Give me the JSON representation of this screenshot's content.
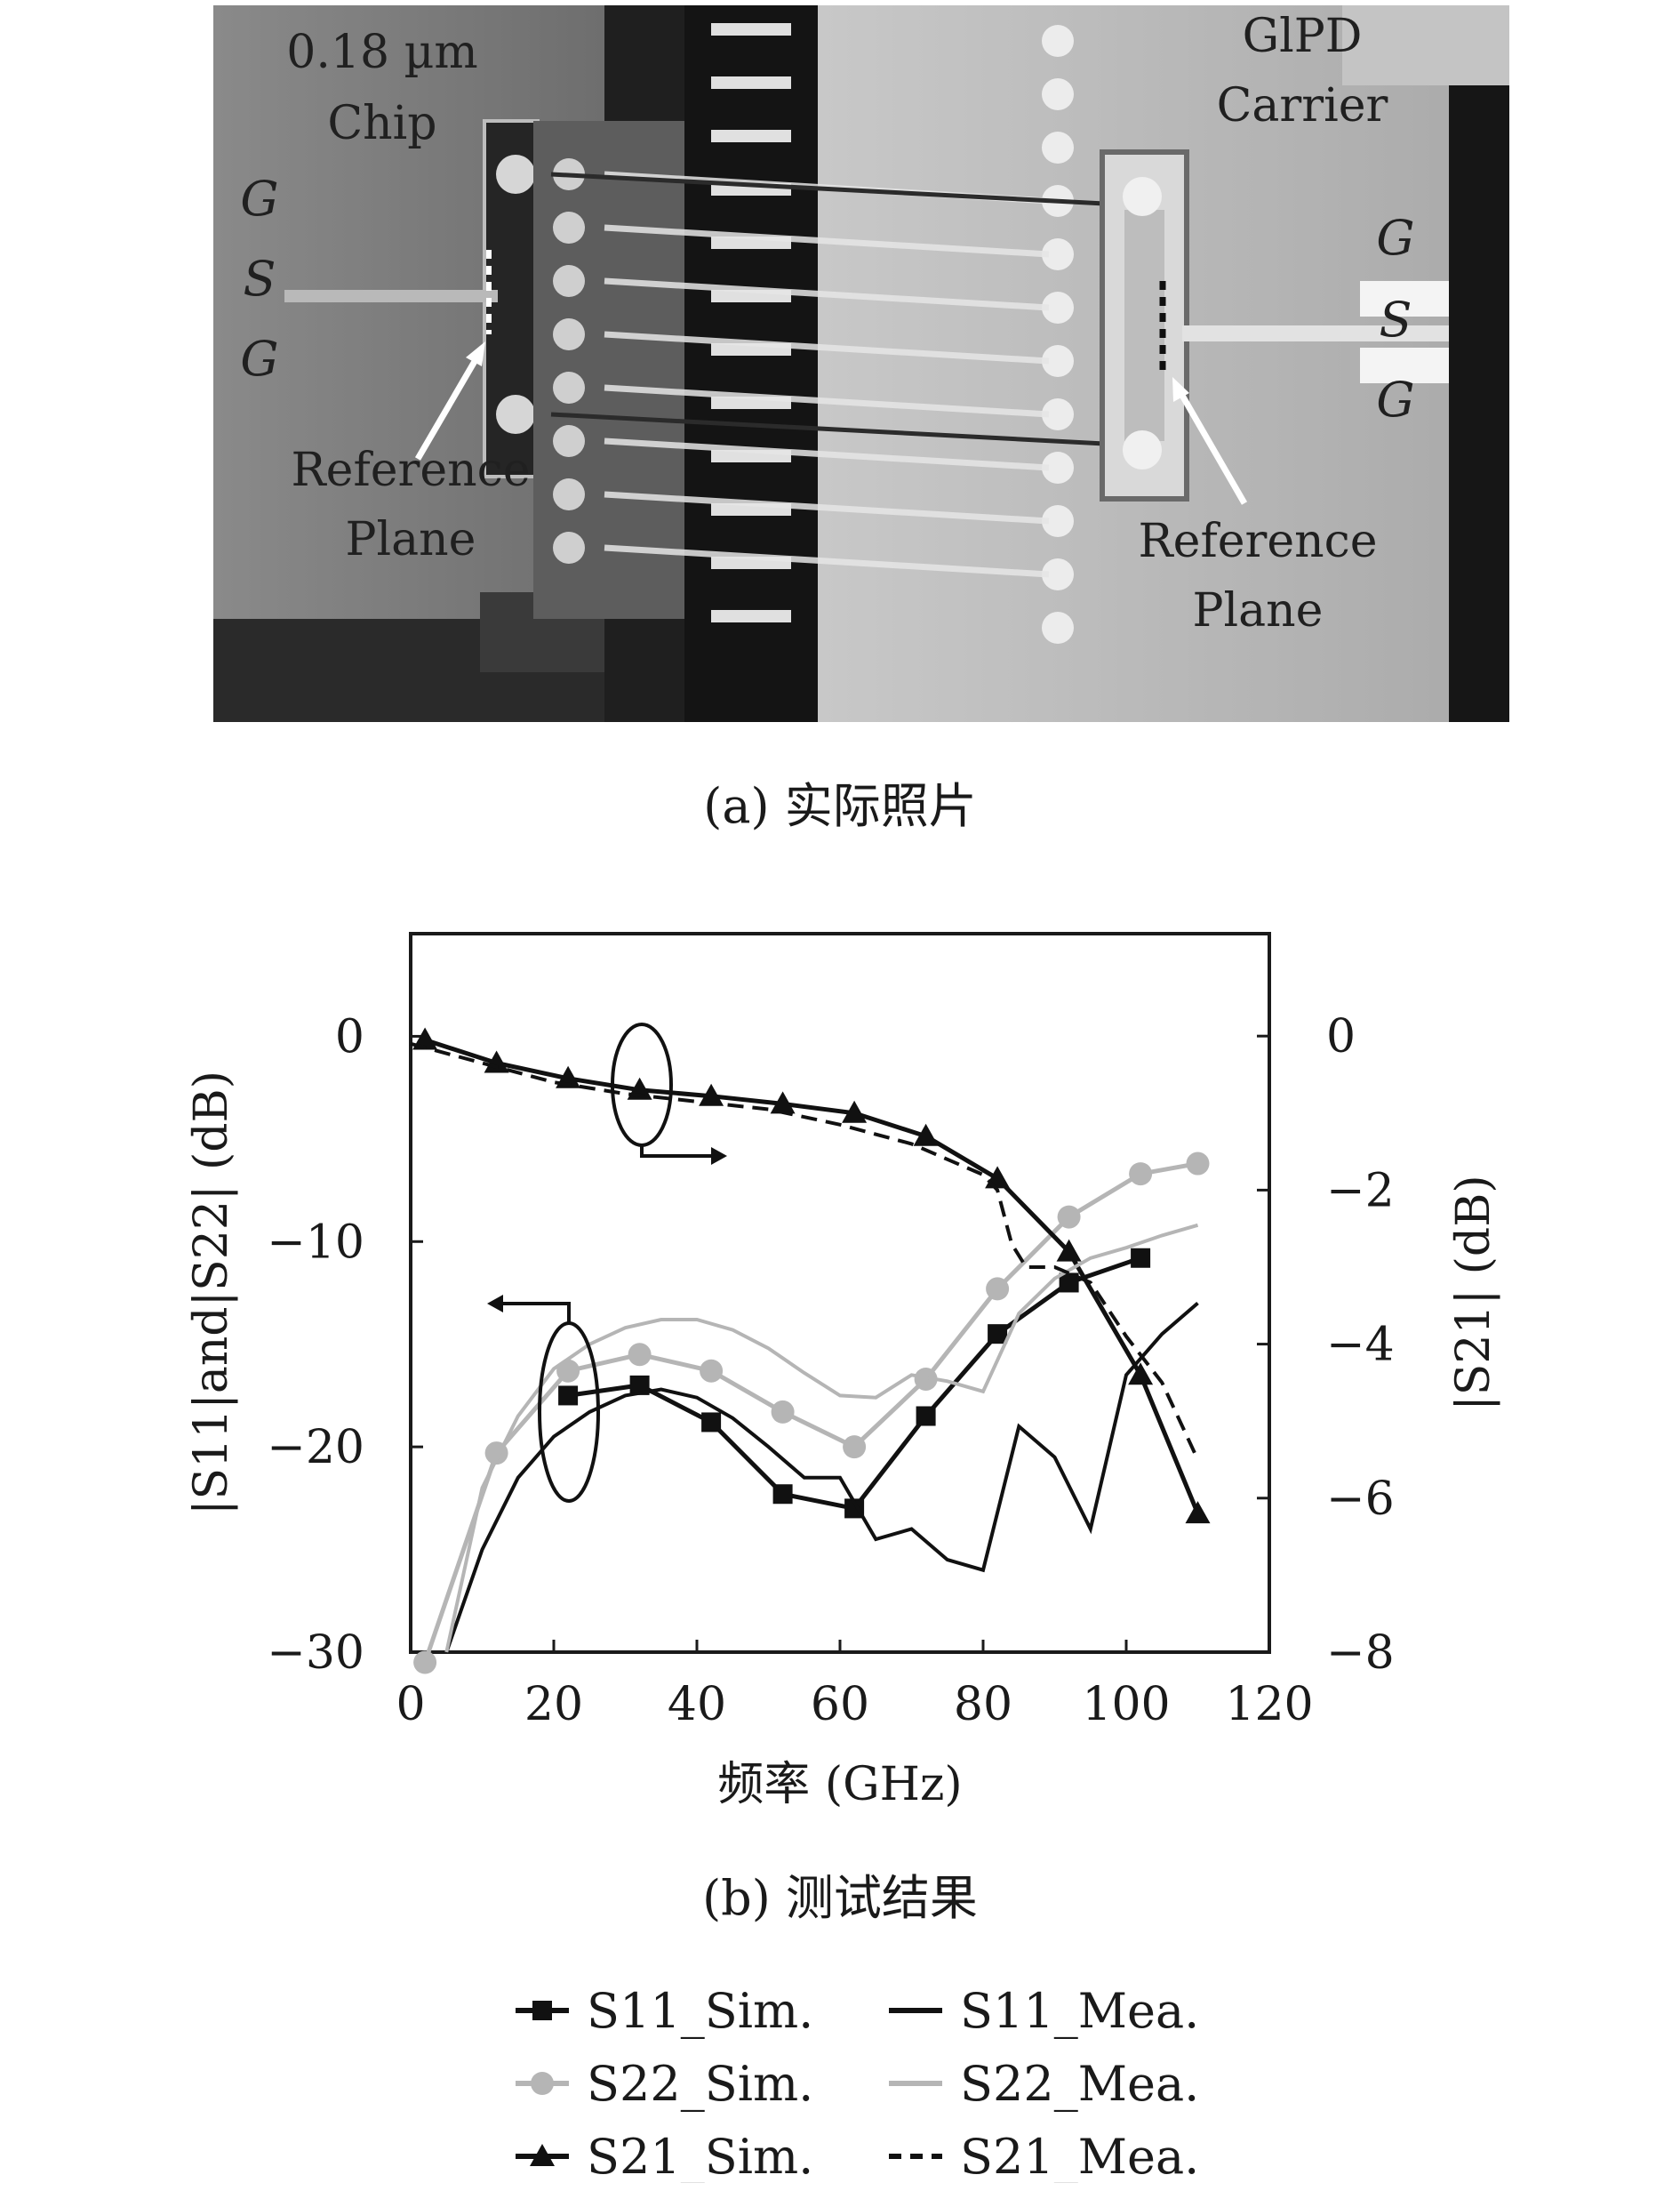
{
  "photo": {
    "chip_label_line1": "0.18 µm",
    "chip_label_line2": "Chip",
    "carrier_label_line1": "GlPD",
    "carrier_label_line2": "Carrier",
    "left_pads": [
      "G",
      "S",
      "G"
    ],
    "right_pads": [
      "G",
      "S",
      "G"
    ],
    "left_reference_line1": "Reference",
    "left_reference_line2": "Plane",
    "right_reference_line1": "Reference",
    "right_reference_line2": "Plane"
  },
  "captions": {
    "a": "(a) 实际照片",
    "b": "(b) 测试结果"
  },
  "chart_data": {
    "type": "line",
    "xlabel": "频率 (GHz)",
    "ylabel_left": "|S11|and|S22| (dB)",
    "ylabel_right": "|S21| (dB)",
    "xlim": [
      0,
      120
    ],
    "ylim_left": [
      -30,
      5
    ],
    "ylim_right": [
      -8,
      1.33
    ],
    "x_ticks": [
      "0",
      "20",
      "40",
      "60",
      "80",
      "100",
      "120"
    ],
    "y_left_ticks": [
      "0",
      "−10",
      "−20",
      "−30"
    ],
    "y_right_ticks": [
      "0",
      "−2",
      "−4",
      "−6",
      "−8"
    ],
    "grid": false,
    "legend_position": "below",
    "series": [
      {
        "name": "S11_Sim.",
        "axis": "left",
        "marker": "square",
        "color": "#111111",
        "style": "solid",
        "x": [
          22,
          32,
          42,
          52,
          62,
          72,
          82,
          92,
          102
        ],
        "y": [
          -17.5,
          -17.0,
          -18.8,
          -22.3,
          -23.0,
          -18.5,
          -14.5,
          -12.0,
          -10.8
        ]
      },
      {
        "name": "S22_Sim.",
        "axis": "left",
        "marker": "circle",
        "color": "#b5b5b5",
        "style": "solid",
        "x": [
          2,
          12,
          22,
          32,
          42,
          52,
          62,
          72,
          82,
          92,
          102,
          110
        ],
        "y": [
          -30.5,
          -20.3,
          -16.3,
          -15.5,
          -16.3,
          -18.3,
          -20.0,
          -16.7,
          -12.3,
          -8.8,
          -6.7,
          -6.2
        ]
      },
      {
        "name": "S21_Sim.",
        "axis": "right",
        "marker": "triangle",
        "color": "#111111",
        "style": "solid",
        "x": [
          2,
          12,
          22,
          32,
          42,
          52,
          62,
          72,
          82,
          92,
          102,
          110
        ],
        "y": [
          -0.05,
          -0.35,
          -0.55,
          -0.7,
          -0.78,
          -0.88,
          -1.0,
          -1.3,
          -1.85,
          -2.8,
          -4.4,
          -6.2
        ]
      },
      {
        "name": "S11_Mea.",
        "axis": "left",
        "marker": "none",
        "color": "#111111",
        "style": "solid",
        "x": [
          5,
          10,
          15,
          20,
          25,
          30,
          35,
          40,
          45,
          50,
          55,
          60,
          65,
          70,
          75,
          80,
          85,
          90,
          95,
          100,
          105,
          110
        ],
        "y": [
          -30,
          -25,
          -21.5,
          -19.5,
          -18.3,
          -17.5,
          -17.2,
          -17.6,
          -18.6,
          -20.0,
          -21.5,
          -21.5,
          -24.5,
          -24.0,
          -25.5,
          -26.0,
          -19.0,
          -20.5,
          -24.0,
          -16.5,
          -14.5,
          -13.0
        ]
      },
      {
        "name": "S22_Mea.",
        "axis": "left",
        "marker": "none",
        "color": "#b5b5b5",
        "style": "solid",
        "x": [
          5,
          10,
          15,
          20,
          25,
          30,
          35,
          40,
          45,
          50,
          55,
          60,
          65,
          70,
          75,
          80,
          85,
          90,
          95,
          100,
          105,
          110
        ],
        "y": [
          -30,
          -22,
          -18.5,
          -16.2,
          -15.0,
          -14.2,
          -13.8,
          -13.8,
          -14.3,
          -15.2,
          -16.4,
          -17.5,
          -17.6,
          -16.5,
          -16.8,
          -17.3,
          -13.5,
          -11.8,
          -10.8,
          -10.3,
          -9.7,
          -9.2
        ]
      },
      {
        "name": "S21_Mea.",
        "axis": "right",
        "marker": "none",
        "color": "#111111",
        "style": "dashed",
        "x": [
          0,
          10,
          20,
          30,
          40,
          50,
          60,
          70,
          80,
          82,
          84,
          86,
          90,
          95,
          100,
          105,
          110
        ],
        "y": [
          -0.1,
          -0.35,
          -0.6,
          -0.75,
          -0.85,
          -0.95,
          -1.15,
          -1.4,
          -1.8,
          -2.0,
          -2.7,
          -3.0,
          -3.0,
          -3.2,
          -3.9,
          -4.5,
          -5.5
        ]
      }
    ]
  },
  "legend": {
    "items": [
      {
        "label": "S11_Sim.",
        "color": "#111111",
        "marker": "square",
        "style": "solid"
      },
      {
        "label": "S11_Mea.",
        "color": "#111111",
        "marker": "none",
        "style": "solid"
      },
      {
        "label": "S22_Sim.",
        "color": "#b5b5b5",
        "marker": "circle",
        "style": "solid"
      },
      {
        "label": "S22_Mea.",
        "color": "#b5b5b5",
        "marker": "none",
        "style": "solid"
      },
      {
        "label": "S21_Sim.",
        "color": "#111111",
        "marker": "triangle",
        "style": "solid"
      },
      {
        "label": "S21_Mea.",
        "color": "#111111",
        "marker": "none",
        "style": "dashed"
      }
    ]
  }
}
